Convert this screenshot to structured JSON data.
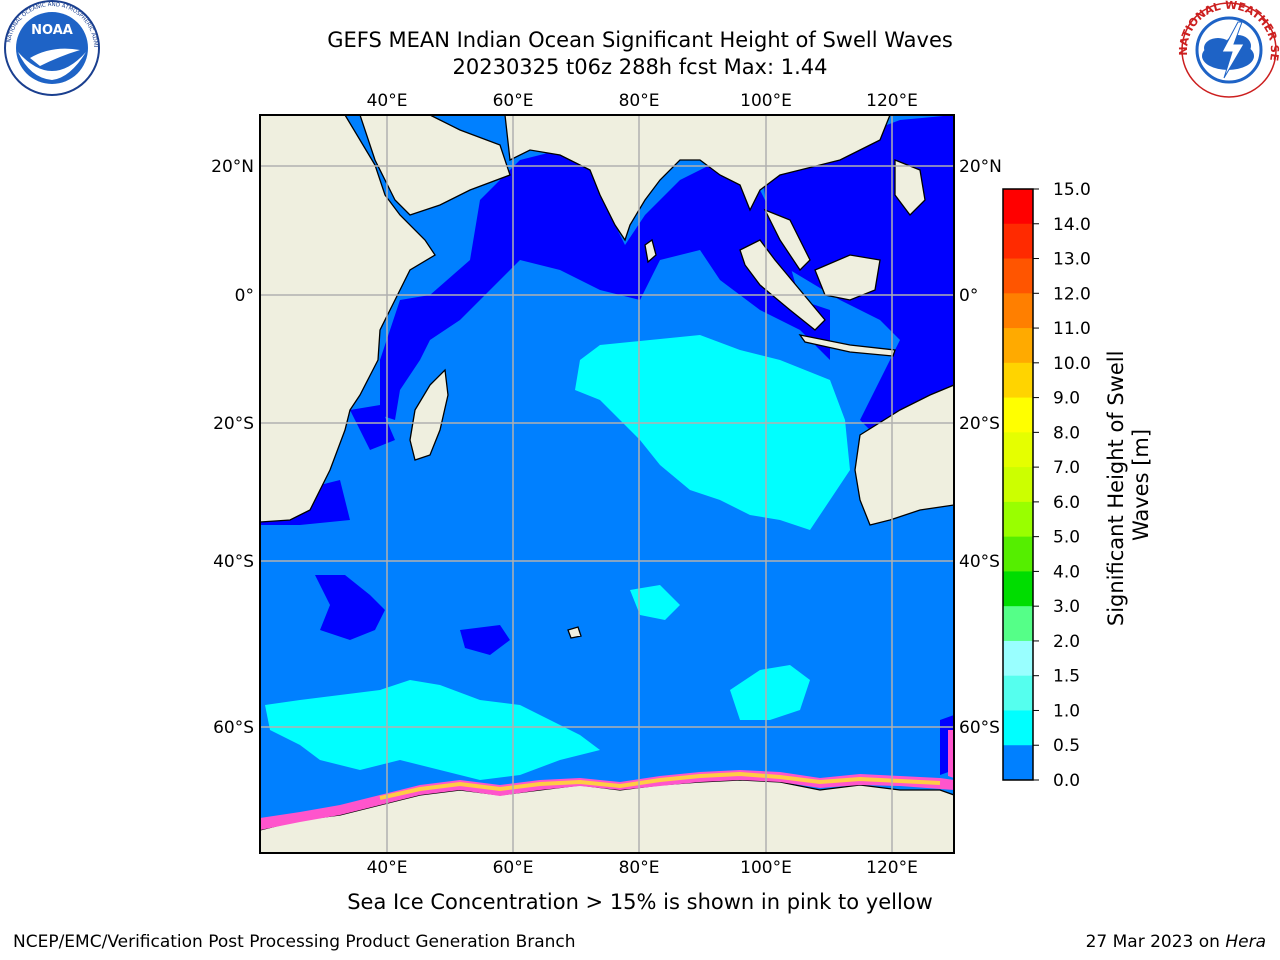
{
  "title": {
    "line1": "GEFS MEAN Indian Ocean Significant Height of Swell Waves",
    "line2": "20230325 t06z 288h fcst   Max: 1.44"
  },
  "axes": {
    "lon_ticks": [
      "40°E",
      "60°E",
      "80°E",
      "100°E",
      "120°E"
    ],
    "lat_ticks": [
      "20°N",
      "0°",
      "20°S",
      "40°S",
      "60°S"
    ]
  },
  "colorbar": {
    "label": "Significant Height of Swell Waves [m]",
    "ticks": [
      "15.0",
      "14.0",
      "13.0",
      "12.0",
      "11.0",
      "10.0",
      "9.0",
      "8.0",
      "7.0",
      "6.0",
      "5.0",
      "4.0",
      "3.0",
      "2.0",
      "1.5",
      "1.0",
      "0.5",
      "0.0"
    ],
    "colors": [
      "#ff0000",
      "#ff2a00",
      "#ff5500",
      "#ff7f00",
      "#ffaa00",
      "#ffd400",
      "#ffff00",
      "#e5ff00",
      "#ccff00",
      "#99ff00",
      "#55ee00",
      "#00dd00",
      "#55ff88",
      "#99ffff",
      "#55ffee",
      "#00ffff",
      "#0080ff",
      "#0000ff"
    ]
  },
  "note": "Sea Ice Concentration > 15% is shown in pink to yellow",
  "footer": {
    "left": "NCEP/EMC/Verification Post Processing Product Generation Branch",
    "right_prefix": "27 Mar 2023 on ",
    "right_host": "Hera"
  },
  "logos": {
    "left": "NOAA",
    "right": "NATIONAL WEATHER SERVICE"
  },
  "colors": {
    "land": "#efefdf",
    "ocean_deep_blue": "#0000ff",
    "ocean_blue": "#0080ff",
    "ocean_cyan": "#00ffff",
    "grid": "#b0b0b0"
  }
}
